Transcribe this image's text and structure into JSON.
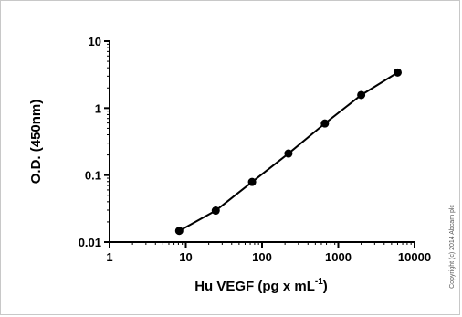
{
  "chart_data": {
    "type": "line",
    "x_scale": "log",
    "y_scale": "log",
    "xlim": [
      1,
      10000
    ],
    "ylim": [
      0.01,
      10
    ],
    "x_ticks": [
      1,
      10,
      100,
      1000,
      10000
    ],
    "x_tick_labels": [
      "1",
      "10",
      "100",
      "1000",
      "10000"
    ],
    "y_ticks": [
      0.01,
      0.1,
      1,
      10
    ],
    "y_tick_labels": [
      "0.01",
      "0.1",
      "1",
      "10"
    ],
    "xlabel_main": "Hu VEGF (pg x mL",
    "xlabel_sup": "-1",
    "xlabel_close": ")",
    "ylabel": "O.D. (450nm)",
    "grid": false,
    "series": [
      {
        "x": [
          8.2,
          24.7,
          74,
          222,
          667,
          2000,
          6000
        ],
        "y": [
          0.0147,
          0.0295,
          0.079,
          0.21,
          0.59,
          1.57,
          3.4
        ]
      }
    ],
    "colors": {
      "line": "#000000",
      "marker": "#000000"
    }
  },
  "copyright": "Copyright (c) 2014 Abcam plc"
}
